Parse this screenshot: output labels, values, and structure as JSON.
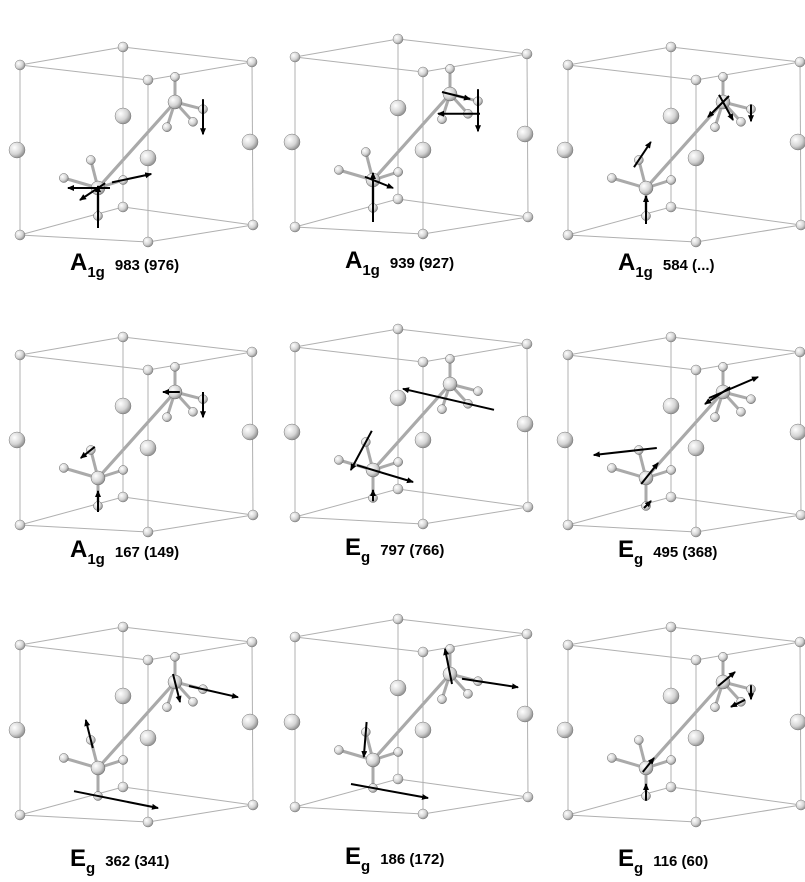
{
  "panels": [
    {
      "symbol": "A",
      "subscript": "1g",
      "frequency": "983 (976)"
    },
    {
      "symbol": "A",
      "subscript": "1g",
      "frequency": "939 (927)"
    },
    {
      "symbol": "A",
      "subscript": "1g",
      "frequency": "584 (...)"
    },
    {
      "symbol": "A",
      "subscript": "1g",
      "frequency": "167 (149)"
    },
    {
      "symbol": "E",
      "subscript": "g",
      "frequency": "797 (766)"
    },
    {
      "symbol": "E",
      "subscript": "g",
      "frequency": "495 (368)"
    },
    {
      "symbol": "E",
      "subscript": "g",
      "frequency": "362 (341)"
    },
    {
      "symbol": "E",
      "subscript": "g",
      "frequency": "186 (172)"
    },
    {
      "symbol": "E",
      "subscript": "g",
      "frequency": "116 (60)"
    }
  ]
}
